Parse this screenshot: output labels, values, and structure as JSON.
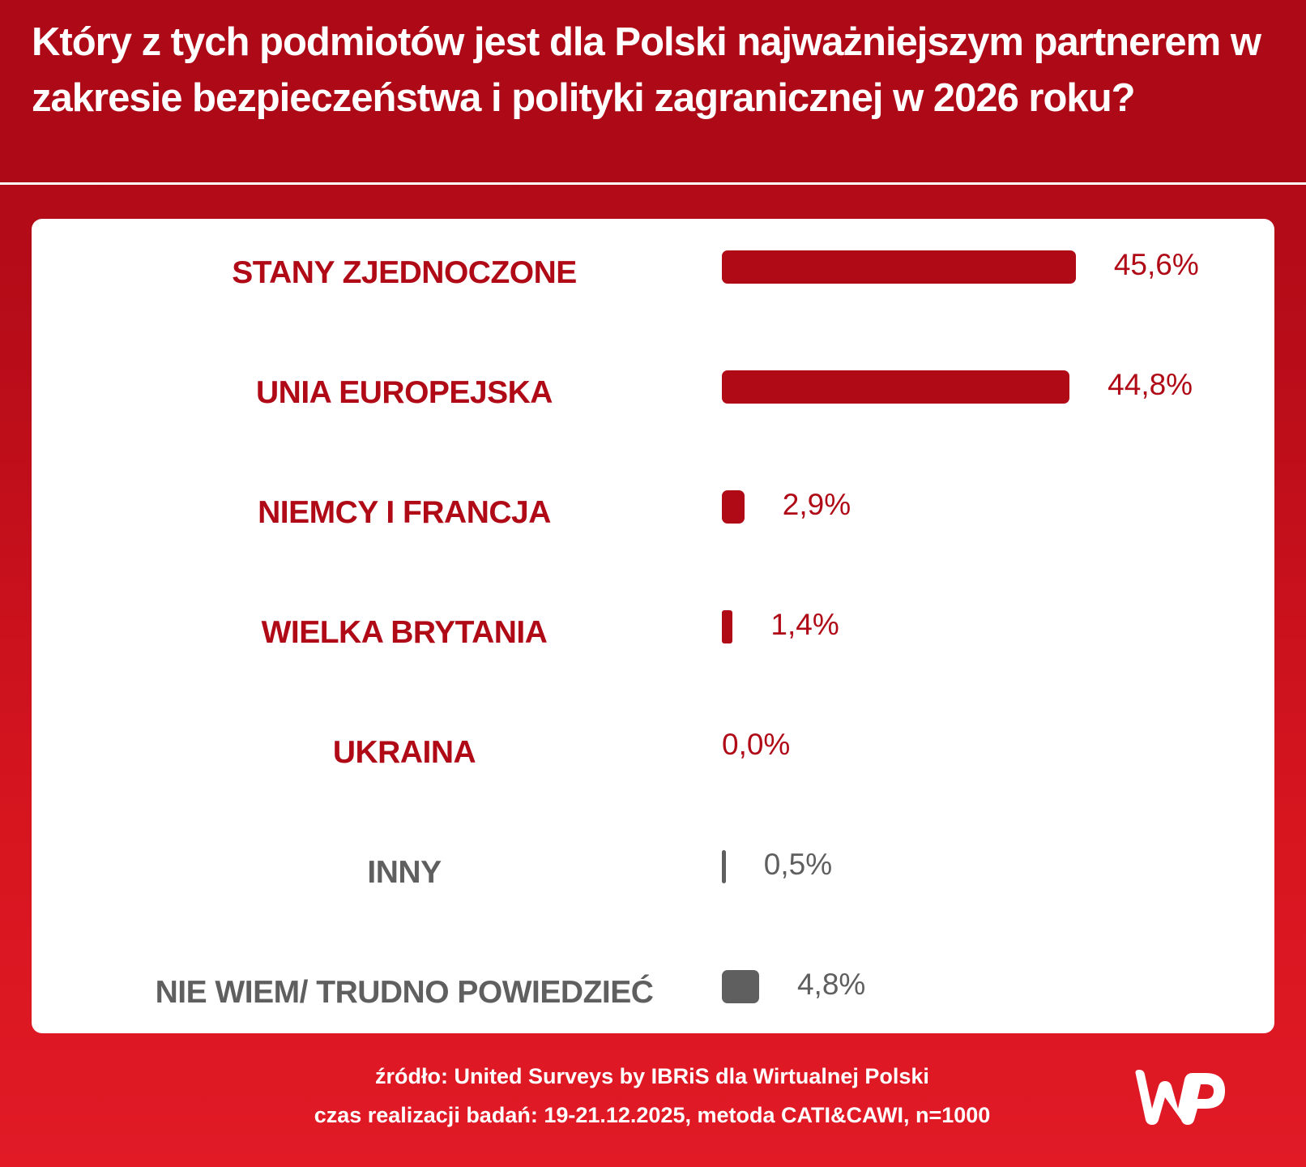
{
  "title": "Który z tych podmiotów jest dla Polski najważniejszym partnerem w zakresie bezpieczeństwa i polityki zagranicznej w 2026 roku?",
  "chart_data": {
    "type": "bar",
    "orientation": "horizontal",
    "title": "Który z tych podmiotów jest dla Polski najważniejszym partnerem w zakresie bezpieczeństwa i polityki zagranicznej w 2026 roku?",
    "categories": [
      "STANY ZJEDNOCZONE",
      "UNIA EUROPEJSKA",
      "NIEMCY I FRANCJA",
      "WIELKA BRYTANIA",
      "UKRAINA",
      "INNY",
      "NIE WIEM/ TRUDNO POWIEDZIEĆ"
    ],
    "values": [
      45.6,
      44.8,
      2.9,
      1.4,
      0.0,
      0.5,
      4.8
    ],
    "value_labels": [
      "45,6%",
      "44,8%",
      "2,9%",
      "1,4%",
      "0,0%",
      "0,5%",
      "4,8%"
    ],
    "colors": [
      "#b00a17",
      "#b00a17",
      "#b00a17",
      "#b00a17",
      "#b00a17",
      "#5f5f5f",
      "#5f5f5f"
    ],
    "xlabel": "",
    "ylabel": "",
    "grid": false
  },
  "footer": {
    "source": "źródło: United Surveys by IBRiS dla Wirtualnej Polski",
    "method": "czas realizacji badań: 19-21.12.2025, metoda CATI&CAWI, n=1000"
  },
  "logo": {
    "text": "WP",
    "color": "#ffffff"
  },
  "colors": {
    "header": "#ae0916",
    "background_bottom": "#e11a26",
    "card": "#ffffff"
  }
}
